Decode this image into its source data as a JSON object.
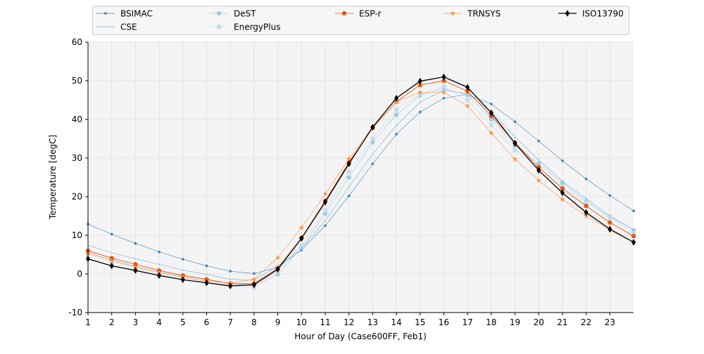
{
  "chart_data": {
    "type": "line",
    "title": "",
    "xlabel": "Hour of Day (Case600FF, Feb1)",
    "ylabel": "Temperature [degC]",
    "xlim": [
      1,
      24
    ],
    "ylim": [
      -10,
      60
    ],
    "x_ticks": [
      1,
      2,
      3,
      4,
      5,
      6,
      7,
      8,
      9,
      10,
      11,
      12,
      13,
      14,
      15,
      16,
      17,
      18,
      19,
      20,
      21,
      22,
      23
    ],
    "y_ticks": [
      -10,
      0,
      10,
      20,
      30,
      40,
      50,
      60
    ],
    "grid": true,
    "legend_position": "top",
    "x": [
      1,
      2,
      3,
      4,
      5,
      6,
      7,
      8,
      9,
      10,
      11,
      12,
      13,
      14,
      15,
      16,
      17,
      18,
      19,
      20,
      21,
      22,
      23,
      24
    ],
    "series": [
      {
        "name": "BSIMAC",
        "color": "#3182bd",
        "marker": "dot",
        "values": [
          12.9,
          10.3,
          7.9,
          5.7,
          3.8,
          2.1,
          0.7,
          0.1,
          1.7,
          6.2,
          12.5,
          20.2,
          28.5,
          36.2,
          41.9,
          45.5,
          46.5,
          44.0,
          39.4,
          34.4,
          29.3,
          24.6,
          20.3,
          16.3
        ]
      },
      {
        "name": "CSE",
        "color": "#6baed6",
        "marker": "pixel",
        "values": [
          7.4,
          5.5,
          3.9,
          2.5,
          1.0,
          -0.1,
          -1.4,
          -1.6,
          2.1,
          6.5,
          13.8,
          22.5,
          31.0,
          38.5,
          44.5,
          47.6,
          46.6,
          42.0,
          35.5,
          29.5,
          24.0,
          19.5,
          15.0,
          11.5
        ]
      },
      {
        "name": "DeST",
        "color": "#9ecae1",
        "marker": "circle",
        "values": [
          5.5,
          3.6,
          2.0,
          0.5,
          -0.5,
          -1.5,
          -2.5,
          -3.2,
          -0.1,
          6.8,
          15.6,
          25.0,
          34.1,
          41.2,
          46.2,
          48.0,
          46.3,
          40.0,
          33.2,
          28.6,
          23.6,
          18.8,
          14.8,
          11.3
        ]
      },
      {
        "name": "EnergyPlus",
        "color": "#c6dbef",
        "marker": "square",
        "values": [
          5.0,
          3.2,
          1.5,
          0.0,
          -1.0,
          -2.0,
          -3.0,
          -3.5,
          0.8,
          7.5,
          16.5,
          26.5,
          35.0,
          42.5,
          46.5,
          48.5,
          45.0,
          38.5,
          32.0,
          27.5,
          22.5,
          18.5,
          14.5,
          10.5
        ]
      },
      {
        "name": "ESP-r",
        "color": "#e6550d",
        "marker": "pentagon",
        "values": [
          6.0,
          4.1,
          2.5,
          0.9,
          -0.4,
          -1.4,
          -2.5,
          -2.5,
          1.5,
          9.3,
          18.9,
          28.9,
          37.8,
          44.6,
          48.9,
          50.0,
          47.3,
          40.9,
          34.0,
          27.6,
          22.1,
          17.6,
          13.3,
          9.8
        ]
      },
      {
        "name": "TRNSYS",
        "color": "#fd8d3c",
        "marker": "star",
        "values": [
          5.4,
          3.5,
          1.8,
          0.4,
          -0.8,
          -1.9,
          -2.3,
          -1.4,
          4.2,
          12.0,
          20.7,
          29.8,
          38.0,
          44.5,
          47.0,
          47.0,
          43.5,
          36.5,
          29.7,
          24.2,
          19.3,
          15.0,
          11.3,
          8.2
        ]
      },
      {
        "name": "ISO13790",
        "color": "#000000",
        "marker": "thin_diamond",
        "values": [
          3.9,
          2.1,
          0.9,
          -0.4,
          -1.5,
          -2.3,
          -3.1,
          -2.8,
          1.2,
          9.2,
          18.6,
          28.5,
          38.0,
          45.5,
          49.9,
          51.0,
          48.3,
          41.7,
          33.8,
          26.8,
          21.0,
          15.9,
          11.6,
          8.2
        ]
      }
    ]
  }
}
